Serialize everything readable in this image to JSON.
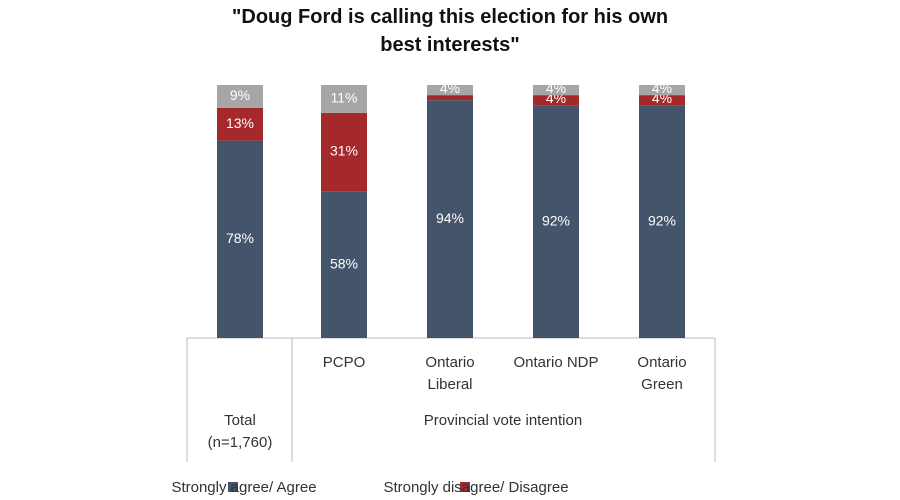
{
  "chart_data": {
    "type": "stacked_bar",
    "title": "\"Doug Ford is calling this election for his own\nbest interests\"",
    "categories": [
      "Total\n(n=1,760)",
      "PCPO",
      "Ontario\nLiberal",
      "Ontario NDP",
      "Ontario\nGreen"
    ],
    "group_label": "Provincial vote intention",
    "ylim": [
      0,
      100
    ],
    "series": [
      {
        "name": "Strongly agree/ Agree",
        "color": "#44546a",
        "values": [
          78,
          58,
          94,
          92,
          92
        ],
        "value_labels": [
          "78%",
          "58%",
          "94%",
          "92%",
          "92%"
        ]
      },
      {
        "name": "Strongly disagree/ Disagree",
        "color": "#a5282a",
        "values": [
          13,
          31,
          2,
          4,
          4
        ],
        "value_labels": [
          "13%",
          "31%",
          null,
          "4%",
          "4%"
        ]
      },
      {
        "color": "#a6a6a6",
        "values": [
          9,
          11,
          4,
          4,
          4
        ],
        "value_labels": [
          "9%",
          "11%",
          "4%",
          "4%",
          "4%"
        ]
      }
    ]
  }
}
